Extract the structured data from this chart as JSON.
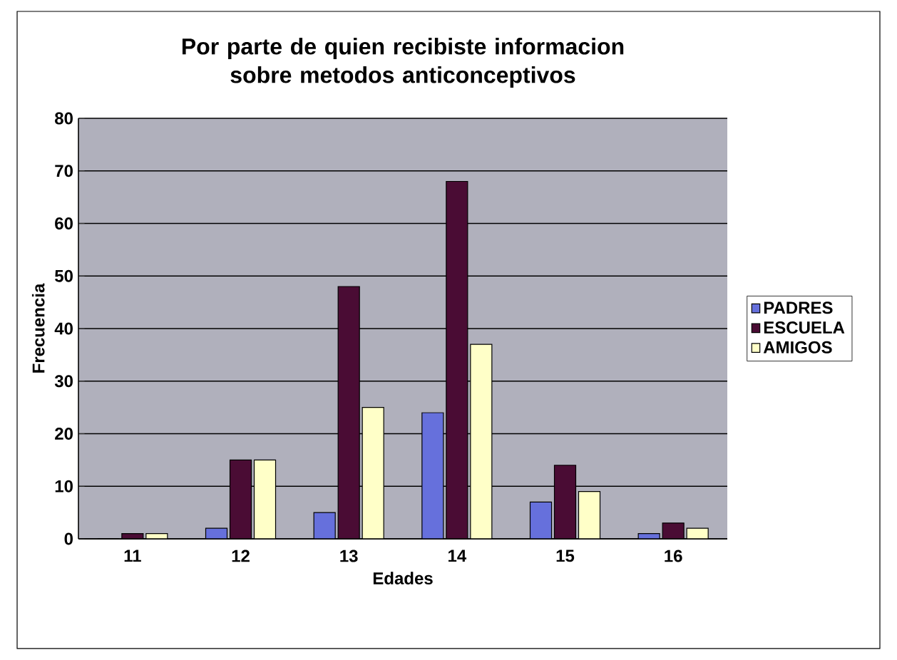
{
  "chart_data": {
    "type": "bar",
    "title": "Por parte de quien recibiste informacion sobre metodos anticonceptivos",
    "xlabel": "Edades",
    "ylabel": "Frecuencia",
    "categories": [
      "11",
      "12",
      "13",
      "14",
      "15",
      "16"
    ],
    "series": [
      {
        "name": "PADRES",
        "color": "#6670dc",
        "values": [
          0,
          2,
          5,
          24,
          7,
          1
        ]
      },
      {
        "name": "ESCUELA",
        "color": "#4a0c34",
        "values": [
          1,
          15,
          48,
          68,
          14,
          3
        ]
      },
      {
        "name": "AMIGOS",
        "color": "#ffffc8",
        "values": [
          1,
          15,
          25,
          37,
          9,
          2
        ]
      }
    ],
    "ylim": [
      0,
      80
    ],
    "yticks": [
      0,
      10,
      20,
      30,
      40,
      50,
      60,
      70,
      80
    ],
    "grid": "y",
    "legend": "right"
  }
}
